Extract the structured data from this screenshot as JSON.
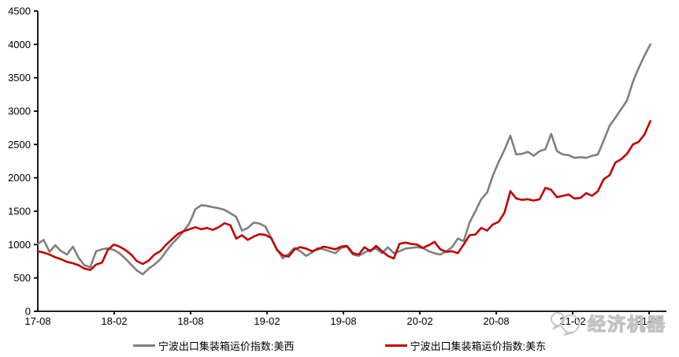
{
  "chart": {
    "background": "#ffffff",
    "axis_color": "#000000",
    "watermark": {
      "text": "经济机器",
      "logo": "overlapping-speech-bubbles-logo",
      "color": "#c2c2c2"
    }
  },
  "chart_data": {
    "type": "line",
    "title": "",
    "xlabel": "",
    "ylabel": "",
    "grid": false,
    "legend_position": "bottom",
    "x_axis": {
      "unit": "year-month (YY-MM)",
      "tick_labels": [
        "17-08",
        "18-02",
        "18-08",
        "19-02",
        "19-08",
        "20-02",
        "20-08",
        "21-02",
        "21-08"
      ],
      "tick_interval_months": 6,
      "lim_months": [
        0,
        49.4
      ]
    },
    "y_axis": {
      "ticks": [
        0,
        500,
        1000,
        1500,
        2000,
        2500,
        3000,
        3500,
        4000,
        4500
      ],
      "lim": [
        0,
        4500
      ]
    },
    "x_months": [
      0,
      0.46,
      0.92,
      1.37,
      1.83,
      2.29,
      2.75,
      3.21,
      3.66,
      4.12,
      4.58,
      5.04,
      5.5,
      5.96,
      6.41,
      6.87,
      7.33,
      7.79,
      8.25,
      8.7,
      9.16,
      9.62,
      10.08,
      10.54,
      10.99,
      11.45,
      11.91,
      12.37,
      12.83,
      13.28,
      13.74,
      14.2,
      14.66,
      15.12,
      15.58,
      16.03,
      16.49,
      16.95,
      17.41,
      17.87,
      18.32,
      18.78,
      19.24,
      19.7,
      20.16,
      20.61,
      21.07,
      21.53,
      21.99,
      22.45,
      22.91,
      23.36,
      23.82,
      24.28,
      24.74,
      25.2,
      25.65,
      26.11,
      26.57,
      27.03,
      27.49,
      27.95,
      28.4,
      28.86,
      29.32,
      29.78,
      30.24,
      30.69,
      31.15,
      31.61,
      32.07,
      32.53,
      32.98,
      33.44,
      33.9,
      34.36,
      34.82,
      35.28,
      35.73,
      36.19,
      36.65,
      37.11,
      37.57,
      38.02,
      38.48,
      38.94,
      39.4,
      39.86,
      40.31,
      40.77,
      41.23,
      41.69,
      42.15,
      42.61,
      43.06,
      43.52,
      43.98,
      44.44,
      44.9,
      45.35,
      45.81,
      46.27,
      46.73,
      47.19,
      47.64,
      48.1
    ],
    "series": [
      {
        "name": "宁波出口集装箱运价指数:美西",
        "color": "#7f7f7f",
        "values": [
          1010,
          1070,
          890,
          990,
          900,
          850,
          970,
          800,
          690,
          660,
          900,
          930,
          945,
          920,
          870,
          790,
          700,
          610,
          555,
          640,
          700,
          780,
          900,
          1010,
          1100,
          1200,
          1320,
          1530,
          1590,
          1580,
          1560,
          1545,
          1520,
          1470,
          1415,
          1210,
          1250,
          1330,
          1315,
          1270,
          1100,
          930,
          795,
          860,
          950,
          900,
          830,
          880,
          950,
          930,
          900,
          870,
          950,
          970,
          850,
          830,
          880,
          920,
          940,
          870,
          960,
          870,
          900,
          940,
          950,
          960,
          950,
          900,
          870,
          850,
          900,
          960,
          1090,
          1050,
          1330,
          1500,
          1680,
          1780,
          2030,
          2240,
          2420,
          2630,
          2350,
          2360,
          2390,
          2330,
          2400,
          2430,
          2660,
          2400,
          2350,
          2340,
          2300,
          2310,
          2300,
          2330,
          2350,
          2560,
          2780,
          2900,
          3030,
          3160,
          3440,
          3650,
          3830,
          4000
        ]
      },
      {
        "name": "宁波出口集装箱运价指数:美东",
        "color": "#c00000",
        "values": [
          900,
          880,
          850,
          810,
          780,
          740,
          720,
          690,
          640,
          620,
          700,
          730,
          920,
          1000,
          970,
          920,
          850,
          750,
          710,
          760,
          850,
          900,
          1000,
          1080,
          1160,
          1200,
          1230,
          1260,
          1230,
          1250,
          1220,
          1260,
          1320,
          1290,
          1090,
          1140,
          1070,
          1120,
          1155,
          1145,
          1100,
          920,
          840,
          820,
          930,
          960,
          940,
          900,
          930,
          970,
          950,
          930,
          970,
          980,
          870,
          850,
          960,
          900,
          980,
          900,
          830,
          790,
          1010,
          1030,
          1010,
          1000,
          950,
          990,
          1040,
          930,
          890,
          900,
          870,
          1000,
          1140,
          1150,
          1250,
          1210,
          1300,
          1340,
          1480,
          1800,
          1690,
          1670,
          1680,
          1660,
          1680,
          1850,
          1820,
          1710,
          1730,
          1750,
          1690,
          1700,
          1770,
          1730,
          1800,
          1980,
          2040,
          2230,
          2280,
          2360,
          2500,
          2540,
          2650,
          2850
        ]
      }
    ]
  }
}
